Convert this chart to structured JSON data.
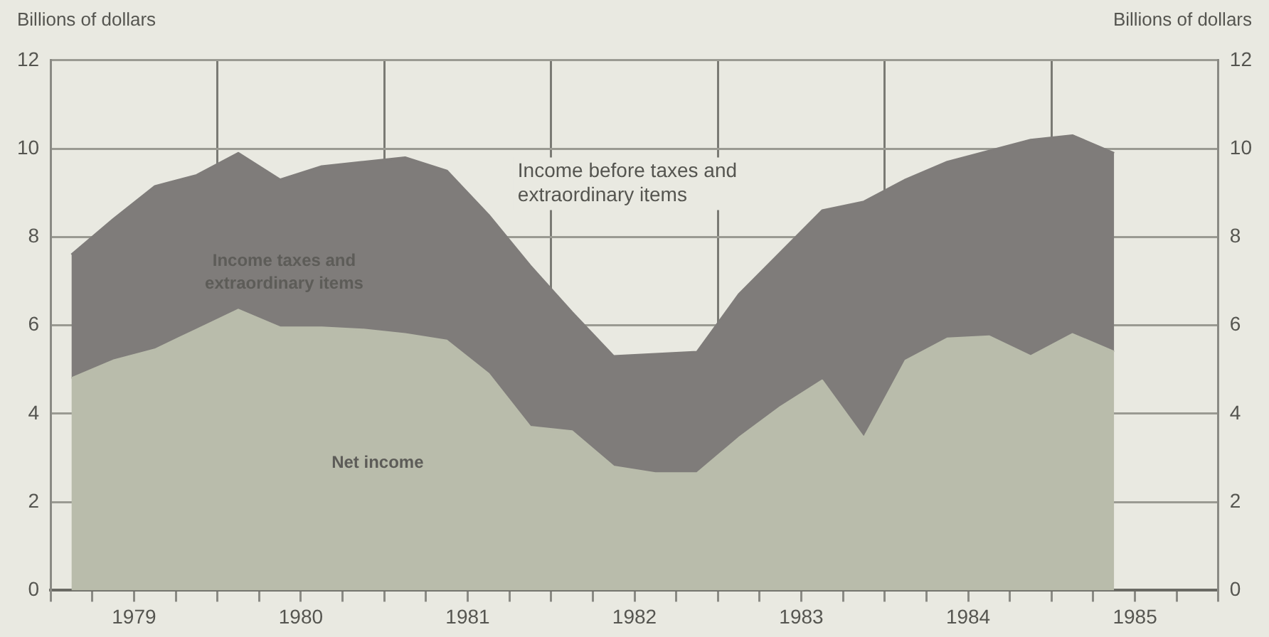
{
  "chart_data": {
    "type": "area",
    "stacked": true,
    "ylabel": "Billions of dollars",
    "y2label": "Billions of dollars",
    "annotations": [
      "Income before taxes and extraordinary items"
    ],
    "x": [
      1979.125,
      1979.375,
      1979.625,
      1979.875,
      1980.125,
      1980.375,
      1980.625,
      1980.875,
      1981.125,
      1981.375,
      1981.625,
      1981.875,
      1982.125,
      1982.375,
      1982.625,
      1982.875,
      1983.125,
      1983.375,
      1983.625,
      1983.875,
      1984.125,
      1984.375,
      1984.625,
      1984.875,
      1985.125,
      1985.375
    ],
    "series": [
      {
        "name": "Net income",
        "color": "#b9bcab",
        "values": [
          4.8,
          5.2,
          5.45,
          5.9,
          6.35,
          5.95,
          5.95,
          5.9,
          5.8,
          5.65,
          4.9,
          3.7,
          3.6,
          2.8,
          2.65,
          2.65,
          3.45,
          4.15,
          4.75,
          3.45,
          5.2,
          5.7,
          5.75,
          5.3,
          5.8,
          5.4
        ]
      },
      {
        "name": "Income taxes and extraordinary items",
        "color": "#7f7c7a",
        "values": [
          2.8,
          3.2,
          3.7,
          3.5,
          3.55,
          3.35,
          3.65,
          3.8,
          4.0,
          3.85,
          3.6,
          3.65,
          2.7,
          2.5,
          2.7,
          2.75,
          3.25,
          3.5,
          3.85,
          5.35,
          4.1,
          4.0,
          4.2,
          4.9,
          4.5,
          4.5
        ]
      }
    ],
    "xlim": [
      1979,
      1986
    ],
    "xticks": [
      {
        "value": 1979,
        "label": null
      },
      {
        "value": 1979.25,
        "label": null
      },
      {
        "value": 1979.5,
        "label": "1979"
      },
      {
        "value": 1979.75,
        "label": null
      },
      {
        "value": 1980,
        "label": null
      },
      {
        "value": 1980.25,
        "label": null
      },
      {
        "value": 1980.5,
        "label": "1980"
      },
      {
        "value": 1980.75,
        "label": null
      },
      {
        "value": 1981,
        "label": null
      },
      {
        "value": 1981.25,
        "label": null
      },
      {
        "value": 1981.5,
        "label": "1981"
      },
      {
        "value": 1981.75,
        "label": null
      },
      {
        "value": 1982,
        "label": null
      },
      {
        "value": 1982.25,
        "label": null
      },
      {
        "value": 1982.5,
        "label": "1982"
      },
      {
        "value": 1982.75,
        "label": null
      },
      {
        "value": 1983,
        "label": null
      },
      {
        "value": 1983.25,
        "label": null
      },
      {
        "value": 1983.5,
        "label": "1983"
      },
      {
        "value": 1983.75,
        "label": null
      },
      {
        "value": 1984,
        "label": null
      },
      {
        "value": 1984.25,
        "label": null
      },
      {
        "value": 1984.5,
        "label": "1984"
      },
      {
        "value": 1984.75,
        "label": null
      },
      {
        "value": 1985,
        "label": null
      },
      {
        "value": 1985.25,
        "label": null
      },
      {
        "value": 1985.5,
        "label": "1985"
      },
      {
        "value": 1985.75,
        "label": null
      },
      {
        "value": 1986,
        "label": null
      }
    ],
    "ylim": [
      0,
      12
    ],
    "yticks": [
      0,
      2,
      4,
      6,
      8,
      10,
      12
    ],
    "y2lim": [
      0,
      12
    ],
    "y2ticks": [
      0,
      2,
      4,
      6,
      8,
      10,
      12
    ],
    "grid": true,
    "legend": false,
    "marker": "none"
  }
}
